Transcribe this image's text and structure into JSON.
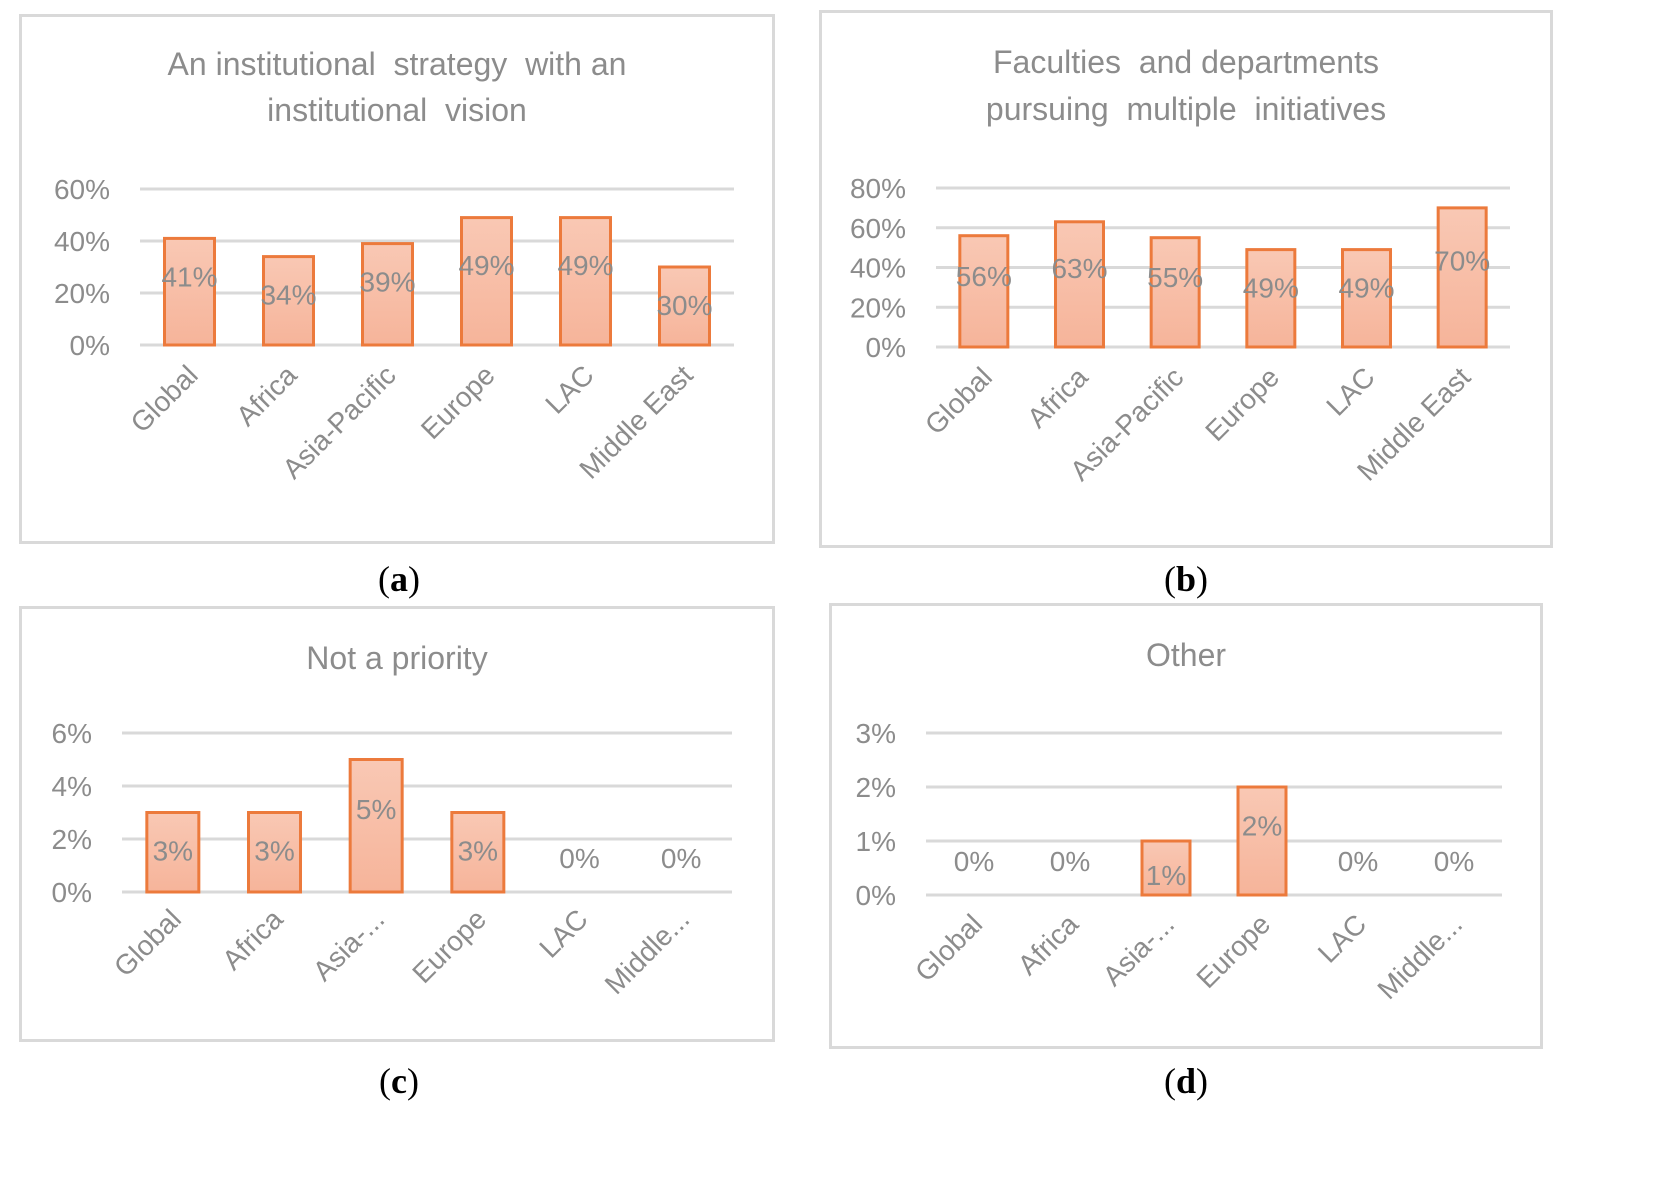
{
  "colors": {
    "bar_fill": "#f6b49a",
    "bar_fill_light": "#f9c8b4",
    "bar_stroke": "#ec7a3c",
    "grid": "#d9d9d9",
    "text": "#8c8c8c"
  },
  "chart_data": [
    {
      "panel_label": "a",
      "type": "bar",
      "title_lines": [
        "An institutional  strategy  with an",
        "institutional  vision"
      ],
      "categories": [
        "Global",
        "Africa",
        "Asia-Pacific",
        "Europe",
        "LAC",
        "Middle East"
      ],
      "values": [
        41,
        34,
        39,
        49,
        49,
        30
      ],
      "data_labels": [
        "41%",
        "34%",
        "39%",
        "49%",
        "49%",
        "30%"
      ],
      "ylim": [
        0,
        60
      ],
      "yticks": [
        0,
        20,
        40,
        60
      ],
      "ytick_labels": [
        "0%",
        "20%",
        "40%",
        "60%"
      ],
      "xlabel": "",
      "ylabel": ""
    },
    {
      "panel_label": "b",
      "type": "bar",
      "title_lines": [
        "Faculties  and departments",
        "pursuing  multiple  initiatives"
      ],
      "categories": [
        "Global",
        "Africa",
        "Asia-Pacific",
        "Europe",
        "LAC",
        "Middle East"
      ],
      "values": [
        56,
        63,
        55,
        49,
        49,
        70
      ],
      "data_labels": [
        "56%",
        "63%",
        "55%",
        "49%",
        "49%",
        "70%"
      ],
      "ylim": [
        0,
        80
      ],
      "yticks": [
        0,
        20,
        40,
        60,
        80
      ],
      "ytick_labels": [
        "0%",
        "20%",
        "40%",
        "60%",
        "80%"
      ],
      "xlabel": "",
      "ylabel": ""
    },
    {
      "panel_label": "c",
      "type": "bar",
      "title_lines": [
        "Not a priority"
      ],
      "categories": [
        "Global",
        "Africa",
        "Asia-...",
        "Europe",
        "LAC",
        "Middle..."
      ],
      "values": [
        3,
        3,
        5,
        3,
        0,
        0
      ],
      "data_labels": [
        "3%",
        "3%",
        "5%",
        "3%",
        "0%",
        "0%"
      ],
      "ylim": [
        0,
        6
      ],
      "yticks": [
        0,
        2,
        4,
        6
      ],
      "ytick_labels": [
        "0%",
        "2%",
        "4%",
        "6%"
      ],
      "xlabel": "",
      "ylabel": ""
    },
    {
      "panel_label": "d",
      "type": "bar",
      "title_lines": [
        "Other"
      ],
      "categories": [
        "Global",
        "Africa",
        "Asia-...",
        "Europe",
        "LAC",
        "Middle..."
      ],
      "values": [
        0,
        0,
        1,
        2,
        0,
        0
      ],
      "data_labels": [
        "0%",
        "0%",
        "1%",
        "2%",
        "0%",
        "0%"
      ],
      "ylim": [
        0,
        3
      ],
      "yticks": [
        0,
        1,
        2,
        3
      ],
      "ytick_labels": [
        "0%",
        "1%",
        "2%",
        "3%"
      ],
      "xlabel": "",
      "ylabel": ""
    }
  ]
}
